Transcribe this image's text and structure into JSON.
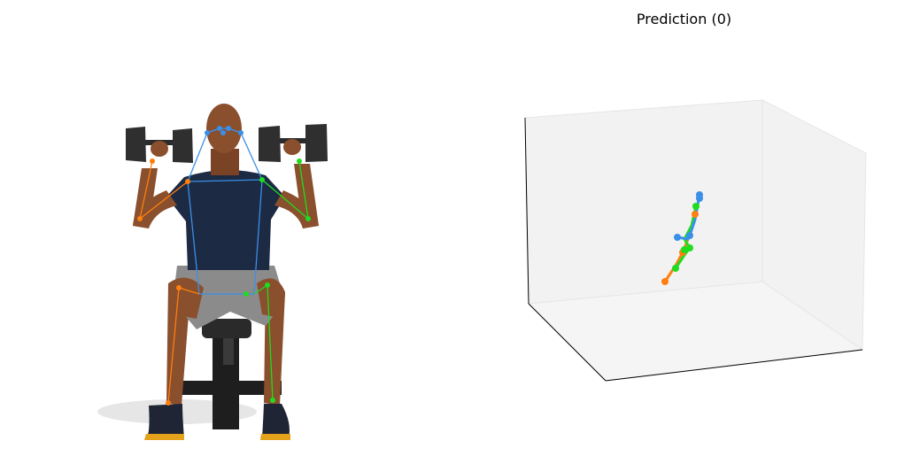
{
  "plot": {
    "title": "Prediction (0)"
  },
  "colors": {
    "left_side": "#1fdc1f",
    "right_side": "#ff7f0e",
    "center": "#3a8fe8",
    "pane_light": "#f2f2f2",
    "pane_floor": "#f5f5f5",
    "axis_line": "#000000"
  }
}
